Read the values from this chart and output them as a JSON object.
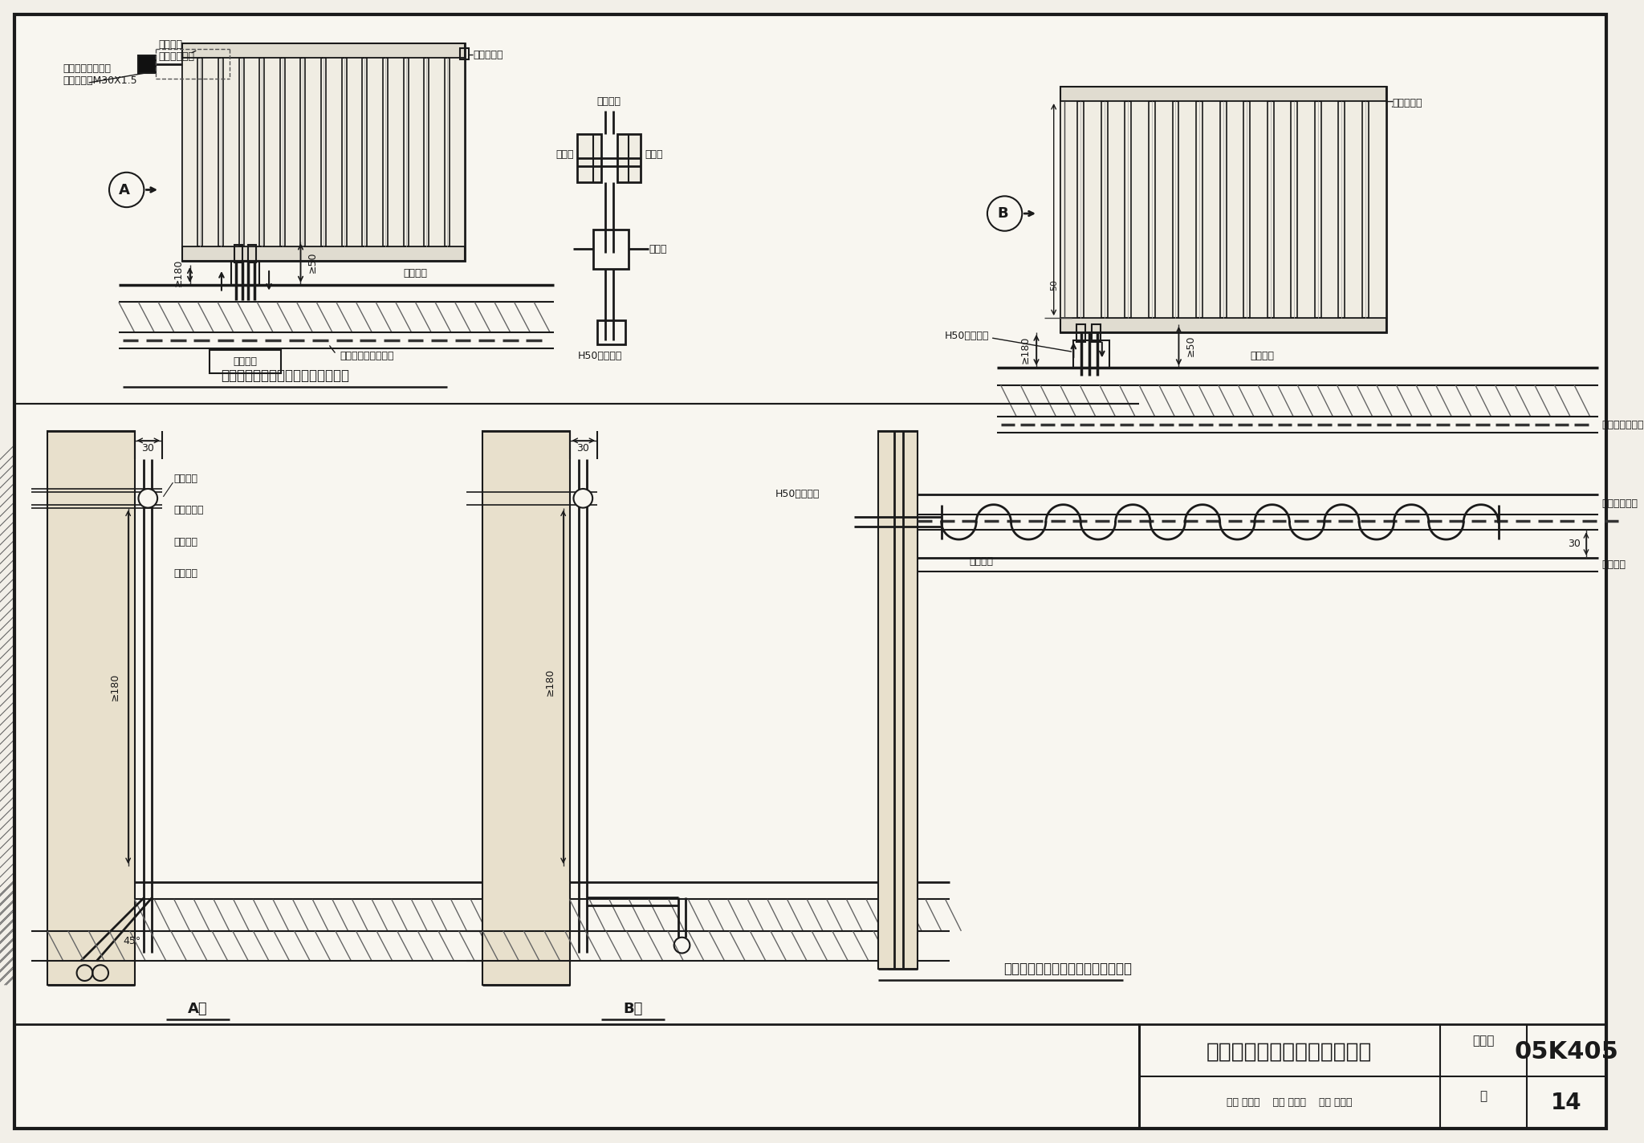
{
  "bg_color": "#f2efe8",
  "paper_color": "#f8f6f0",
  "line_color": "#1a1a1a",
  "title": "钢管散热器与管道连接（二）",
  "atlas_no_label": "图集号",
  "atlas_no": "05K405",
  "page_label": "页",
  "page_no": "14",
  "review_row": "审核 孙淑萍    校对 劳逸民    设计 胡建丽",
  "caption_top_left": "地面敷设双管系统同侧下进下出连接",
  "caption_bottom_right": "地面敷设单管系统同侧下进下出连接",
  "label_A": "A",
  "label_B": "B",
  "label_A_dir": "A向",
  "label_B_dir": "B向",
  "ann_valve1": "内置阀体与温控头\n的连接螺纹M30X1.5",
  "ann_valve2": "内置阀体\n（带预调节）",
  "ann_air_valve1": "配套放气阀",
  "ann_air_valve2": "配套放气阀",
  "ann_radiator": "接散热器",
  "ann_thermostat": "温控阀",
  "ann_shutoff": "关断阀",
  "ann_pipe": "接管道",
  "ann_h50_straight": "H50阀直通接",
  "ann_h50_angle1": "H50阀转角接",
  "ann_h50_angle2": "H50阀转角接",
  "ann_ge180_1": "≥180",
  "ann_ge50_1": "≥50",
  "ann_floor1": "建筑面层",
  "ann_floor2": "建筑面层",
  "ann_reserved": "预留管盒",
  "ann_hotmelt": "热熔连接型塑料管道",
  "ann_heating": "采暖用塑料管道",
  "ann_sleeve1": "穿墙套管",
  "ann_sleeve2": "穿墙套管",
  "ann_access": "预留检修口",
  "ann_insulation": "保温套管",
  "ann_floor3": "建筑面层",
  "ann_ge180_2": "≥180",
  "ann_deg45": "45°",
  "ann_cushion": "垫层内管道槽",
  "ann_decor": "建筑饰面",
  "ann_30a": "30",
  "ann_30b": "30",
  "ann_50": "50",
  "ann_ge180_3": "≥180",
  "ann_ge50_2": "≥50"
}
